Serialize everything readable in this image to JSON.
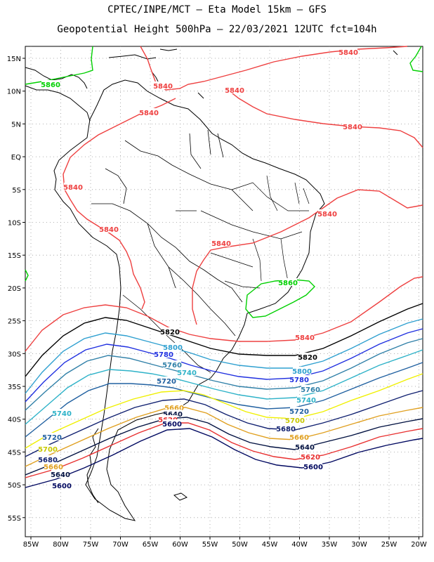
{
  "header": {
    "title_line1": "CPTEC/INPE/MCT –  Eta Model 15km – GFS",
    "title_line2": "Geopotential Height 500hPa – 22/03/2021 12UTC fct=104h"
  },
  "map": {
    "lon_ticks": [
      "85W",
      "80W",
      "75W",
      "70W",
      "65W",
      "60W",
      "55W",
      "50W",
      "45W",
      "40W",
      "35W",
      "30W",
      "25W",
      "20W"
    ],
    "lat_ticks": [
      "15N",
      "10N",
      "5N",
      "EQ",
      "5S",
      "10S",
      "15S",
      "20S",
      "25S",
      "30S",
      "35S",
      "40S",
      "45S",
      "50S",
      "55S"
    ],
    "colors": {
      "h5860": "#00d000",
      "h5840": "#ee4040",
      "h5820": "#000000",
      "h5800": "#2fa0d0",
      "h5780": "#2030e0",
      "h5760": "#3080a8",
      "h5740": "#2eb2c8",
      "h5720": "#2060a0",
      "h5700": "#f0f000",
      "h5680": "#102070",
      "h5660": "#e0a020",
      "h5640": "#001040",
      "h5620": "#e83030",
      "h5600": "#000860",
      "land": "#000000",
      "grid": "#999999"
    },
    "contour_labels": [
      {
        "text": "5840",
        "color": "#ee4040"
      },
      {
        "text": "5840",
        "color": "#ee4040"
      },
      {
        "text": "5840",
        "color": "#ee4040"
      },
      {
        "text": "5840",
        "color": "#ee4040"
      },
      {
        "text": "5840",
        "color": "#ee4040"
      },
      {
        "text": "5840",
        "color": "#ee4040"
      },
      {
        "text": "5840",
        "color": "#ee4040"
      },
      {
        "text": "5840",
        "color": "#ee4040"
      },
      {
        "text": "5840",
        "color": "#ee4040"
      },
      {
        "text": "5840",
        "color": "#ee4040"
      },
      {
        "text": "5860",
        "color": "#00d000"
      },
      {
        "text": "5860",
        "color": "#00d000"
      },
      {
        "text": "5820",
        "color": "#000000"
      },
      {
        "text": "5820",
        "color": "#000000"
      },
      {
        "text": "5800",
        "color": "#2fa0d0"
      },
      {
        "text": "5800",
        "color": "#2fa0d0"
      },
      {
        "text": "5780",
        "color": "#2030e0"
      },
      {
        "text": "5780",
        "color": "#2030e0"
      },
      {
        "text": "5760",
        "color": "#3080a8"
      },
      {
        "text": "5760",
        "color": "#3080a8"
      },
      {
        "text": "5740",
        "color": "#2eb2c8"
      },
      {
        "text": "5740",
        "color": "#2eb2c8"
      },
      {
        "text": "5740",
        "color": "#2eb2c8"
      },
      {
        "text": "5720",
        "color": "#2060a0"
      },
      {
        "text": "5720",
        "color": "#2060a0"
      },
      {
        "text": "5720",
        "color": "#2060a0"
      },
      {
        "text": "5700",
        "color": "#c8c800"
      },
      {
        "text": "5700",
        "color": "#c8c800"
      },
      {
        "text": "5680",
        "color": "#102070"
      },
      {
        "text": "5680",
        "color": "#102070"
      },
      {
        "text": "5660",
        "color": "#e0a020"
      },
      {
        "text": "5660",
        "color": "#e0a020"
      },
      {
        "text": "5660",
        "color": "#e0a020"
      },
      {
        "text": "5640",
        "color": "#001040"
      },
      {
        "text": "5640",
        "color": "#001040"
      },
      {
        "text": "5640",
        "color": "#001040"
      },
      {
        "text": "5620",
        "color": "#e83030"
      },
      {
        "text": "5620",
        "color": "#e83030"
      },
      {
        "text": "5600",
        "color": "#000860"
      },
      {
        "text": "5600",
        "color": "#000860"
      },
      {
        "text": "5600",
        "color": "#000860"
      }
    ]
  }
}
